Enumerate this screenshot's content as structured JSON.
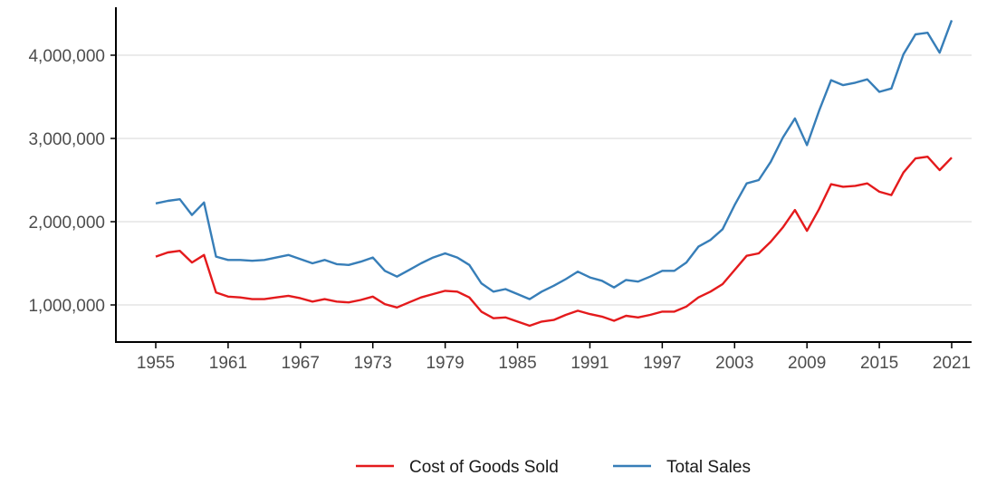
{
  "chart_data": {
    "type": "line",
    "title": "",
    "xlabel": "",
    "ylabel": "",
    "xlim": [
      1955,
      2021
    ],
    "ylim": [
      600000,
      4500000
    ],
    "x_ticks": [
      1955,
      1961,
      1967,
      1973,
      1979,
      1985,
      1991,
      1997,
      2003,
      2009,
      2015,
      2021
    ],
    "x_tick_labels": [
      "1955",
      "1961",
      "1967",
      "1973",
      "1979",
      "1985",
      "1991",
      "1997",
      "2003",
      "2009",
      "2015",
      "2021"
    ],
    "y_ticks": [
      1000000,
      2000000,
      3000000,
      4000000
    ],
    "y_tick_labels": [
      "1,000,000",
      "2,000,000",
      "3,000,000",
      "4,000,000"
    ],
    "grid": "horizontal major",
    "legend_position": "bottom",
    "x": [
      1955,
      1956,
      1957,
      1958,
      1959,
      1960,
      1961,
      1962,
      1963,
      1964,
      1965,
      1966,
      1967,
      1968,
      1969,
      1970,
      1971,
      1972,
      1973,
      1974,
      1975,
      1976,
      1977,
      1978,
      1979,
      1980,
      1981,
      1982,
      1983,
      1984,
      1985,
      1986,
      1987,
      1988,
      1989,
      1990,
      1991,
      1992,
      1993,
      1994,
      1995,
      1996,
      1997,
      1998,
      1999,
      2000,
      2001,
      2002,
      2003,
      2004,
      2005,
      2006,
      2007,
      2008,
      2009,
      2010,
      2011,
      2012,
      2013,
      2014,
      2015,
      2016,
      2017,
      2018,
      2019,
      2020,
      2021
    ],
    "series": [
      {
        "name": "Cost of Goods Sold",
        "color": "#e41a1c",
        "values": [
          1580000,
          1630000,
          1650000,
          1510000,
          1600000,
          1150000,
          1100000,
          1090000,
          1070000,
          1070000,
          1090000,
          1110000,
          1080000,
          1040000,
          1070000,
          1040000,
          1030000,
          1060000,
          1100000,
          1010000,
          970000,
          1030000,
          1090000,
          1130000,
          1170000,
          1160000,
          1090000,
          920000,
          840000,
          850000,
          800000,
          750000,
          800000,
          820000,
          880000,
          930000,
          890000,
          860000,
          810000,
          870000,
          850000,
          880000,
          920000,
          920000,
          980000,
          1090000,
          1160000,
          1250000,
          1420000,
          1590000,
          1620000,
          1760000,
          1930000,
          2140000,
          1890000,
          2150000,
          2450000,
          2420000,
          2430000,
          2460000,
          2360000,
          2320000,
          2590000,
          2760000,
          2780000,
          2620000,
          2770000
        ]
      },
      {
        "name": "Total Sales",
        "color": "#377eb8",
        "values": [
          2220000,
          2250000,
          2270000,
          2080000,
          2230000,
          1580000,
          1540000,
          1540000,
          1530000,
          1540000,
          1570000,
          1600000,
          1550000,
          1500000,
          1540000,
          1490000,
          1480000,
          1520000,
          1570000,
          1410000,
          1340000,
          1420000,
          1500000,
          1570000,
          1620000,
          1570000,
          1480000,
          1260000,
          1160000,
          1190000,
          1130000,
          1070000,
          1160000,
          1230000,
          1310000,
          1400000,
          1330000,
          1290000,
          1210000,
          1300000,
          1280000,
          1340000,
          1410000,
          1410000,
          1510000,
          1700000,
          1780000,
          1910000,
          2200000,
          2460000,
          2500000,
          2720000,
          3010000,
          3240000,
          2920000,
          3330000,
          3700000,
          3640000,
          3670000,
          3710000,
          3560000,
          3600000,
          4010000,
          4250000,
          4270000,
          4030000,
          4420000
        ]
      }
    ]
  }
}
